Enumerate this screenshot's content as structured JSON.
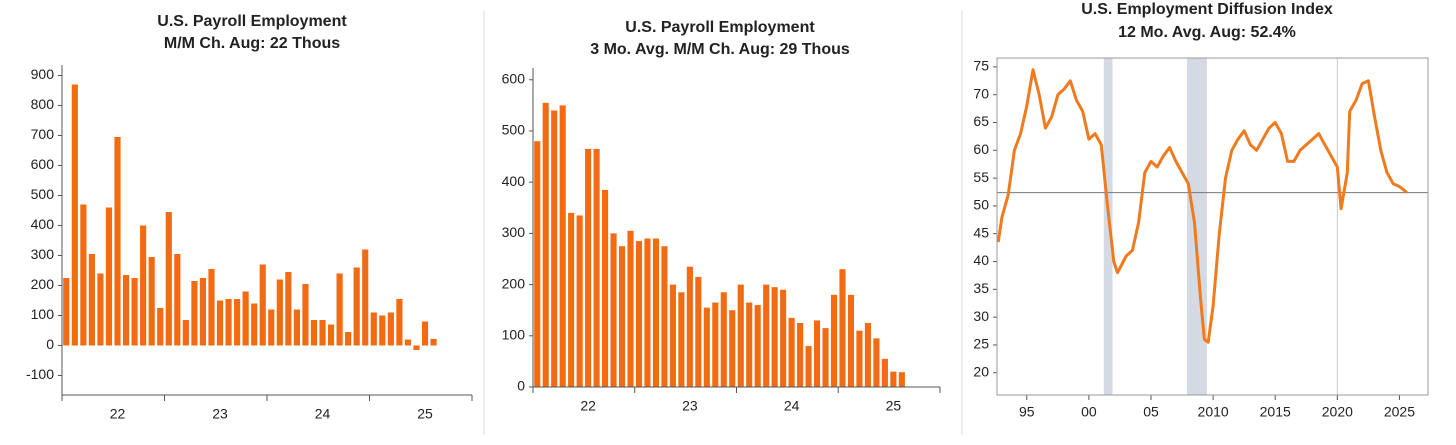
{
  "chart_data": [
    {
      "type": "bar",
      "title": "U.S. Payroll Employment",
      "subtitle": "M/M Ch.   Aug: 22 Thous",
      "categories": [
        null,
        null,
        null,
        null,
        null,
        null,
        "22",
        null,
        null,
        null,
        null,
        null,
        null,
        null,
        null,
        null,
        null,
        null,
        "23",
        null,
        null,
        null,
        null,
        null,
        null,
        null,
        null,
        null,
        null,
        null,
        "24",
        null,
        null,
        null,
        null,
        null,
        null,
        null,
        null,
        null,
        null,
        null,
        "25",
        null
      ],
      "values": [
        225,
        870,
        470,
        305,
        240,
        460,
        695,
        235,
        225,
        400,
        295,
        125,
        445,
        305,
        85,
        215,
        225,
        255,
        150,
        155,
        155,
        180,
        140,
        270,
        120,
        220,
        245,
        120,
        205,
        85,
        85,
        70,
        240,
        45,
        260,
        320,
        110,
        100,
        110,
        155,
        20,
        -15,
        80,
        22
      ],
      "color": "#f26a12",
      "ylim": [
        -165,
        935
      ],
      "yticks": [
        -100,
        0,
        100,
        200,
        300,
        400,
        500,
        600,
        700,
        800,
        900
      ]
    },
    {
      "type": "bar",
      "title": "U.S. Payroll Employment",
      "subtitle": "3 Mo. Avg. M/M Ch.   Aug: 29 Thous",
      "categories": [
        null,
        null,
        null,
        null,
        null,
        null,
        "22",
        null,
        null,
        null,
        null,
        null,
        null,
        null,
        null,
        null,
        null,
        null,
        "23",
        null,
        null,
        null,
        null,
        null,
        null,
        null,
        null,
        null,
        null,
        null,
        "24",
        null,
        null,
        null,
        null,
        null,
        null,
        null,
        null,
        null,
        null,
        null,
        "25",
        null
      ],
      "values": [
        480,
        555,
        540,
        550,
        340,
        335,
        465,
        465,
        385,
        300,
        275,
        305,
        285,
        290,
        290,
        275,
        200,
        185,
        235,
        215,
        155,
        165,
        185,
        150,
        200,
        165,
        160,
        200,
        195,
        190,
        135,
        125,
        80,
        130,
        115,
        180,
        230,
        180,
        110,
        125,
        95,
        55,
        30,
        29
      ],
      "color": "#f26a12",
      "ylim": [
        0,
        623
      ],
      "yticks": [
        0,
        100,
        200,
        300,
        400,
        500,
        600
      ]
    },
    {
      "type": "line",
      "title": "U.S. Employment Diffusion Index",
      "subtitle": "12 Mo. Avg.   Aug: 52.4%",
      "x": [
        1992.7,
        1993,
        1993.5,
        1994,
        1994.5,
        1995,
        1995.5,
        1996,
        1996.5,
        1997,
        1997.5,
        1998,
        1998.5,
        1999,
        1999.5,
        2000,
        2000.5,
        2001,
        2001.5,
        2002,
        2002.3,
        2003,
        2003.5,
        2004,
        2004.5,
        2005,
        2005.5,
        2006,
        2006.5,
        2007,
        2007.5,
        2008,
        2008.5,
        2009,
        2009.3,
        2009.6,
        2010,
        2010.5,
        2011,
        2011.5,
        2012,
        2012.5,
        2013,
        2013.5,
        2014,
        2014.5,
        2015,
        2015.5,
        2016,
        2016.5,
        2017,
        2017.5,
        2018,
        2018.5,
        2019,
        2019.5,
        2020,
        2020.3,
        2020.8,
        2021,
        2021.5,
        2022,
        2022.5,
        2023,
        2023.5,
        2024,
        2024.5,
        2025,
        2025.6
      ],
      "values": [
        43.5,
        48,
        52,
        60,
        63,
        68,
        74.5,
        70,
        64,
        66,
        70,
        71,
        72.5,
        69,
        67,
        62,
        63,
        61,
        50,
        40,
        38,
        41,
        42,
        47,
        56,
        58,
        57,
        59,
        60.5,
        58,
        56,
        54,
        47,
        33,
        26,
        25.5,
        32,
        45,
        55,
        60,
        62,
        63.5,
        61,
        60,
        62,
        64,
        65,
        63,
        58,
        58,
        60,
        61,
        62,
        63,
        61,
        59,
        57,
        49.5,
        56,
        67,
        69,
        72,
        72.5,
        66,
        60,
        56,
        54,
        53.5,
        52.4
      ],
      "color": "#f07a1e",
      "reference_line": 52.4,
      "recessions": [
        [
          2001.2,
          2001.9
        ],
        [
          2007.9,
          2009.5
        ]
      ],
      "xlim": [
        1992.6,
        2027.3
      ],
      "ylim": [
        16,
        76.6
      ],
      "xticks": [
        {
          "value": 1995,
          "label": "95"
        },
        {
          "value": 2000,
          "label": "00"
        },
        {
          "value": 2005,
          "label": "05"
        },
        2010,
        2015,
        2020,
        2025
      ],
      "yticks": [
        20,
        25,
        30,
        35,
        40,
        45,
        50,
        55,
        60,
        65,
        70,
        75
      ]
    }
  ]
}
